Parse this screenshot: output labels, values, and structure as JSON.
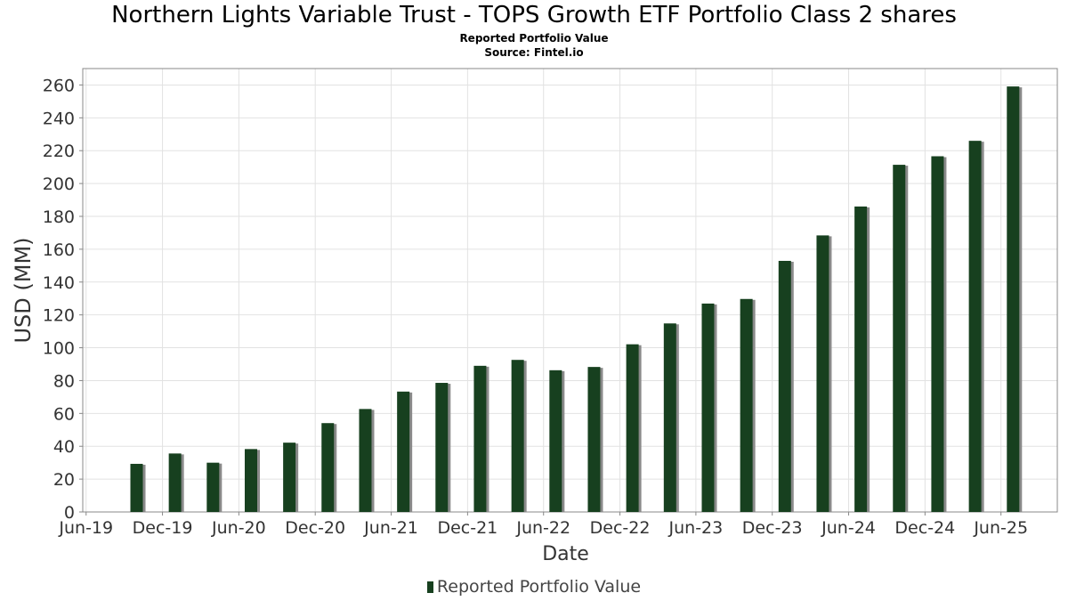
{
  "chart_data": {
    "type": "bar",
    "title": "Northern Lights Variable Trust - TOPS Growth ETF Portfolio Class 2 shares",
    "subtitle": "Reported Portfolio Value",
    "source": "Source: Fintel.io",
    "xlabel": "Date",
    "ylabel": "USD (MM)",
    "ylim": [
      0,
      270
    ],
    "yticks": [
      0,
      20,
      40,
      60,
      80,
      100,
      120,
      140,
      160,
      180,
      200,
      220,
      240,
      260
    ],
    "xlim": [
      "2019-05-24",
      "2025-10-14"
    ],
    "xticks": [
      {
        "date": "2019-06-01",
        "label": "Jun-19"
      },
      {
        "date": "2019-12-01",
        "label": "Dec-19"
      },
      {
        "date": "2020-06-01",
        "label": "Jun-20"
      },
      {
        "date": "2020-12-01",
        "label": "Dec-20"
      },
      {
        "date": "2021-06-01",
        "label": "Jun-21"
      },
      {
        "date": "2021-12-01",
        "label": "Dec-21"
      },
      {
        "date": "2022-06-01",
        "label": "Jun-22"
      },
      {
        "date": "2022-12-01",
        "label": "Dec-22"
      },
      {
        "date": "2023-06-01",
        "label": "Jun-23"
      },
      {
        "date": "2023-12-01",
        "label": "Dec-23"
      },
      {
        "date": "2024-06-01",
        "label": "Jun-24"
      },
      {
        "date": "2024-12-01",
        "label": "Dec-24"
      },
      {
        "date": "2025-06-01",
        "label": "Jun-25"
      }
    ],
    "grid": true,
    "legend_position": "bottom-center",
    "series": [
      {
        "name": "Reported Portfolio Value",
        "color": "#17401f",
        "shadow_color": "#8a8a8a",
        "x": [
          "2019-09-30",
          "2019-12-31",
          "2020-03-31",
          "2020-06-30",
          "2020-09-30",
          "2020-12-31",
          "2021-03-31",
          "2021-06-30",
          "2021-09-30",
          "2021-12-31",
          "2022-03-31",
          "2022-06-30",
          "2022-09-30",
          "2022-12-31",
          "2023-03-31",
          "2023-06-30",
          "2023-09-30",
          "2023-12-31",
          "2024-03-31",
          "2024-06-30",
          "2024-09-30",
          "2024-12-31",
          "2025-03-31",
          "2025-06-30"
        ],
        "values": [
          29.3,
          35.6,
          30.0,
          38.3,
          42.2,
          54.1,
          62.7,
          73.3,
          78.6,
          89.0,
          92.6,
          86.3,
          88.3,
          102.1,
          114.8,
          126.9,
          129.7,
          152.9,
          168.4,
          186.0,
          211.4,
          216.6,
          226.0,
          259.1
        ]
      }
    ]
  },
  "colors": {
    "bar": "#17401f",
    "bar_shadow": "#8a8a8a",
    "grid": "#e2e2e2",
    "axis": "#888888",
    "tick_text": "#333333"
  }
}
